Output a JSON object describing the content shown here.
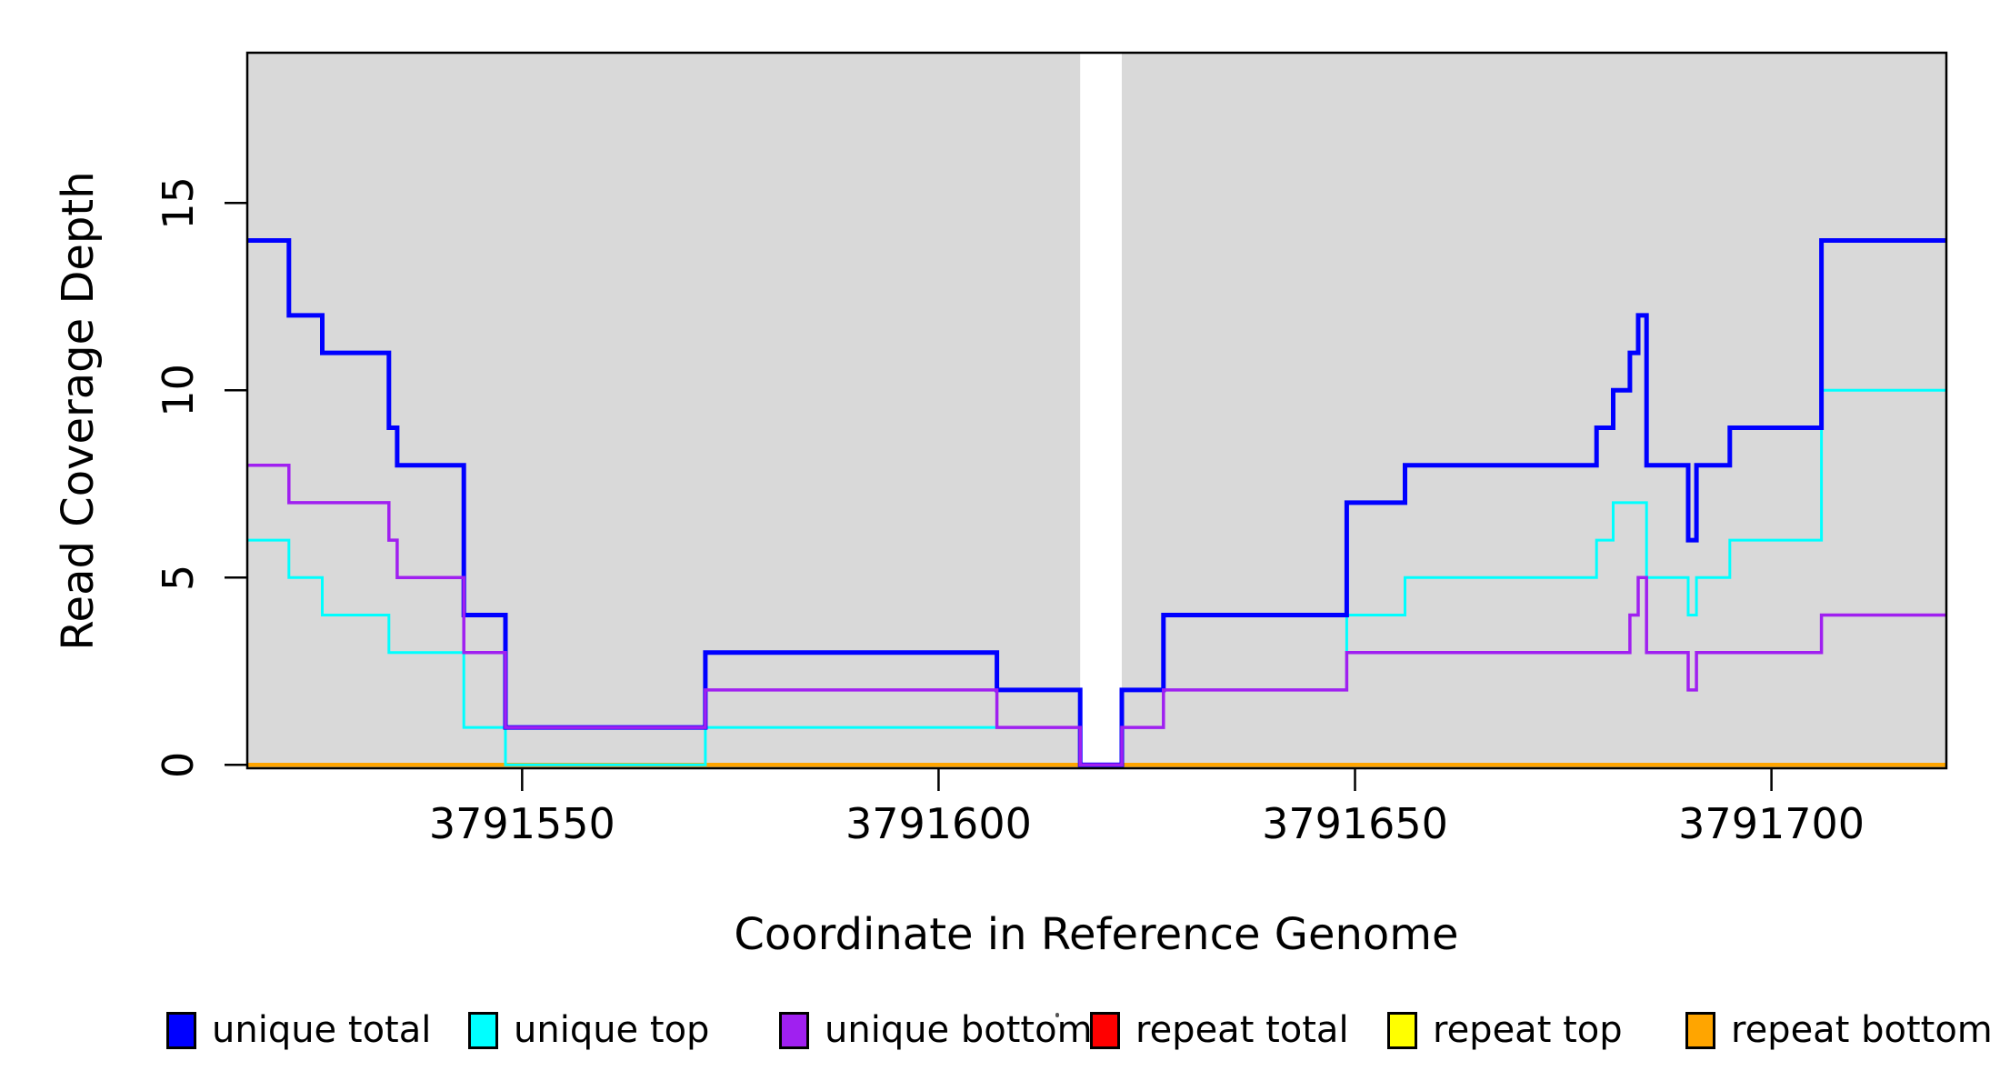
{
  "chart_data": {
    "type": "line",
    "subtype": "step-coverage",
    "title": "",
    "xlabel": "Coordinate in Reference Genome",
    "ylabel": "Read Coverage Depth",
    "xlim": [
      3791517,
      3791721
    ],
    "ylim": [
      0,
      19.1
    ],
    "x_ticks": [
      3791550,
      3791600,
      3791650,
      3791700
    ],
    "y_ticks": [
      0,
      5,
      10,
      15
    ],
    "grid": false,
    "plot_background": "#d9d9d9",
    "page_background": "#ffffff",
    "border_color": "#000000",
    "gap_region": {
      "start": 3791617,
      "end": 3791622,
      "fill": "#ffffff"
    },
    "legend_position": "bottom",
    "draw_order": [
      "repeat total",
      "repeat top",
      "repeat bottom",
      "unique top",
      "unique total",
      "unique bottom"
    ],
    "series": [
      {
        "name": "unique total",
        "color": "#0000ff",
        "line_width": 5,
        "segments": [
          [
            3791517,
            3791522,
            14
          ],
          [
            3791522,
            3791526,
            12
          ],
          [
            3791526,
            3791534,
            11
          ],
          [
            3791534,
            3791535,
            9
          ],
          [
            3791535,
            3791543,
            8
          ],
          [
            3791543,
            3791548,
            4
          ],
          [
            3791548,
            3791572,
            1
          ],
          [
            3791572,
            3791607,
            3
          ],
          [
            3791607,
            3791617,
            2
          ],
          [
            3791617,
            3791622,
            0
          ],
          [
            3791622,
            3791627,
            2
          ],
          [
            3791627,
            3791649,
            4
          ],
          [
            3791649,
            3791656,
            7
          ],
          [
            3791656,
            3791679,
            8
          ],
          [
            3791679,
            3791681,
            9
          ],
          [
            3791681,
            3791683,
            10
          ],
          [
            3791683,
            3791684,
            11
          ],
          [
            3791684,
            3791685,
            12
          ],
          [
            3791685,
            3791690,
            8
          ],
          [
            3791690,
            3791691,
            6
          ],
          [
            3791691,
            3791695,
            8
          ],
          [
            3791695,
            3791706,
            9
          ],
          [
            3791706,
            3791721,
            14
          ]
        ]
      },
      {
        "name": "unique top",
        "color": "#00ffff",
        "line_width": 3,
        "segments": [
          [
            3791517,
            3791522,
            6
          ],
          [
            3791522,
            3791526,
            5
          ],
          [
            3791526,
            3791534,
            4
          ],
          [
            3791534,
            3791543,
            3
          ],
          [
            3791543,
            3791548,
            1
          ],
          [
            3791548,
            3791572,
            0
          ],
          [
            3791572,
            3791617,
            1
          ],
          [
            3791617,
            3791622,
            0
          ],
          [
            3791622,
            3791627,
            1
          ],
          [
            3791627,
            3791649,
            2
          ],
          [
            3791649,
            3791656,
            4
          ],
          [
            3791656,
            3791679,
            5
          ],
          [
            3791679,
            3791681,
            6
          ],
          [
            3791681,
            3791685,
            7
          ],
          [
            3791685,
            3791690,
            5
          ],
          [
            3791690,
            3791691,
            4
          ],
          [
            3791691,
            3791695,
            5
          ],
          [
            3791695,
            3791706,
            6
          ],
          [
            3791706,
            3791721,
            10
          ]
        ]
      },
      {
        "name": "unique bottom",
        "color": "#a020f0",
        "line_width": 3.5,
        "segments": [
          [
            3791517,
            3791522,
            8
          ],
          [
            3791522,
            3791534,
            7
          ],
          [
            3791534,
            3791535,
            6
          ],
          [
            3791535,
            3791543,
            5
          ],
          [
            3791543,
            3791548,
            3
          ],
          [
            3791548,
            3791572,
            1
          ],
          [
            3791572,
            3791607,
            2
          ],
          [
            3791607,
            3791617,
            1
          ],
          [
            3791617,
            3791622,
            0
          ],
          [
            3791622,
            3791627,
            1
          ],
          [
            3791627,
            3791649,
            2
          ],
          [
            3791649,
            3791683,
            3
          ],
          [
            3791683,
            3791684,
            4
          ],
          [
            3791684,
            3791685,
            5
          ],
          [
            3791685,
            3791690,
            3
          ],
          [
            3791690,
            3791691,
            2
          ],
          [
            3791691,
            3791706,
            3
          ],
          [
            3791706,
            3791721,
            4
          ]
        ]
      },
      {
        "name": "repeat total",
        "color": "#ff0000",
        "line_width": 3,
        "segments": [
          [
            3791517,
            3791721,
            0
          ]
        ]
      },
      {
        "name": "repeat top",
        "color": "#ffff00",
        "line_width": 3,
        "segments": [
          [
            3791517,
            3791721,
            0
          ]
        ]
      },
      {
        "name": "repeat bottom",
        "color": "#ffa500",
        "line_width": 4.5,
        "segments": [
          [
            3791517,
            3791721,
            0
          ]
        ]
      }
    ]
  },
  "legend": {
    "items": [
      {
        "label": "unique total",
        "color": "#0000ff"
      },
      {
        "label": "unique top",
        "color": "#00ffff"
      },
      {
        "label": "unique bottom",
        "color": "#a020f0"
      },
      {
        "label": "repeat total",
        "color": "#ff0000"
      },
      {
        "label": "repeat top",
        "color": "#ffff00"
      },
      {
        "label": "repeat bottom",
        "color": "#ffa500"
      }
    ]
  }
}
